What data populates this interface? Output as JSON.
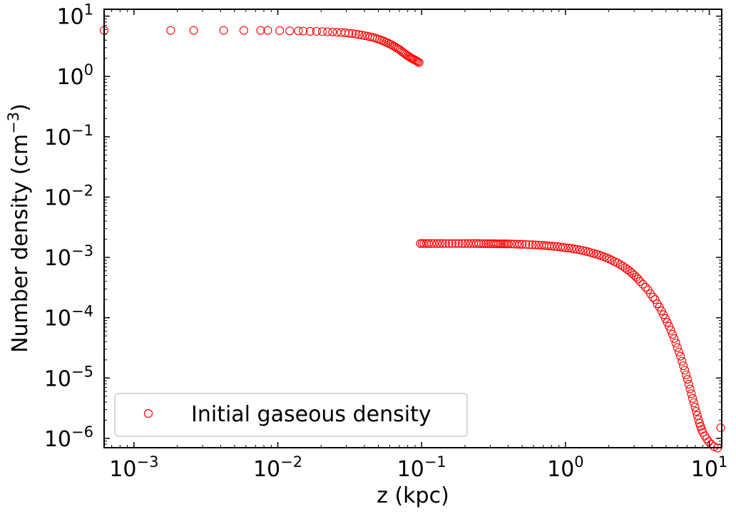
{
  "chart_data": {
    "type": "scatter",
    "title": "",
    "xlabel": "z (kpc)",
    "ylabel_base": "Number density (cm",
    "ylabel_exp": "−3",
    "ylabel_close": ")",
    "xscale": "log",
    "yscale": "log",
    "xlim": [
      0.00062,
      12.2
    ],
    "ylim": [
      7e-07,
      13
    ],
    "grid": false,
    "legend_placement": "lower-left",
    "x_ticks": [
      {
        "value": 0.001,
        "base": "10",
        "exp": "−3"
      },
      {
        "value": 0.01,
        "base": "10",
        "exp": "−2"
      },
      {
        "value": 0.1,
        "base": "10",
        "exp": "−1"
      },
      {
        "value": 1,
        "base": "10",
        "exp": "0"
      },
      {
        "value": 10,
        "base": "10",
        "exp": "1"
      }
    ],
    "y_ticks": [
      {
        "value": 1e-06,
        "base": "10",
        "exp": "−6"
      },
      {
        "value": 1e-05,
        "base": "10",
        "exp": "−5"
      },
      {
        "value": 0.0001,
        "base": "10",
        "exp": "−4"
      },
      {
        "value": 0.001,
        "base": "10",
        "exp": "−3"
      },
      {
        "value": 0.01,
        "base": "10",
        "exp": "−2"
      },
      {
        "value": 0.1,
        "base": "10",
        "exp": "−1"
      },
      {
        "value": 1,
        "base": "10",
        "exp": "0"
      },
      {
        "value": 10,
        "base": "10",
        "exp": "1"
      }
    ],
    "series": [
      {
        "name": "Initial gaseous density",
        "color": "#ff0000",
        "marker": "open-circle",
        "points": [
          [
            0.00062,
            5.8
          ],
          [
            0.0018,
            5.8
          ],
          [
            0.0026,
            5.8
          ],
          [
            0.0042,
            5.8
          ],
          [
            0.0058,
            5.8
          ],
          [
            0.0076,
            5.8
          ],
          [
            0.0085,
            5.8
          ],
          [
            0.0103,
            5.75
          ],
          [
            0.0121,
            5.7
          ],
          [
            0.0139,
            5.7
          ],
          [
            0.015,
            5.65
          ],
          [
            0.0168,
            5.6
          ],
          [
            0.0186,
            5.6
          ],
          [
            0.0204,
            5.55
          ],
          [
            0.0222,
            5.5
          ],
          [
            0.024,
            5.45
          ],
          [
            0.0258,
            5.4
          ],
          [
            0.0276,
            5.35
          ],
          [
            0.0294,
            5.3
          ],
          [
            0.0312,
            5.2
          ],
          [
            0.033,
            5.15
          ],
          [
            0.0348,
            5.05
          ],
          [
            0.0366,
            4.95
          ],
          [
            0.0384,
            4.85
          ],
          [
            0.0402,
            4.75
          ],
          [
            0.042,
            4.65
          ],
          [
            0.0438,
            4.55
          ],
          [
            0.0456,
            4.45
          ],
          [
            0.0474,
            4.35
          ],
          [
            0.0492,
            4.2
          ],
          [
            0.051,
            4.1
          ],
          [
            0.0528,
            3.95
          ],
          [
            0.0546,
            3.85
          ],
          [
            0.0564,
            3.7
          ],
          [
            0.0582,
            3.6
          ],
          [
            0.06,
            3.45
          ],
          [
            0.0618,
            3.35
          ],
          [
            0.0636,
            3.2
          ],
          [
            0.0654,
            3.1
          ],
          [
            0.0672,
            2.95
          ],
          [
            0.069,
            2.85
          ],
          [
            0.0708,
            2.75
          ],
          [
            0.0726,
            2.6
          ],
          [
            0.0744,
            2.5
          ],
          [
            0.0762,
            2.4
          ],
          [
            0.078,
            2.3
          ],
          [
            0.0798,
            2.2
          ],
          [
            0.0816,
            2.15
          ],
          [
            0.0834,
            2.05
          ],
          [
            0.0852,
            2.0
          ],
          [
            0.087,
            1.95
          ],
          [
            0.0888,
            1.9
          ],
          [
            0.0906,
            1.85
          ],
          [
            0.0924,
            1.8
          ],
          [
            0.0942,
            1.75
          ],
          [
            0.096,
            1.7
          ],
          [
            0.098,
            0.0017
          ],
          [
            0.101,
            0.0017
          ],
          [
            0.104,
            0.0017
          ],
          [
            0.108,
            0.0017
          ],
          [
            0.112,
            0.0017
          ],
          [
            0.117,
            0.0017
          ],
          [
            0.122,
            0.0017
          ],
          [
            0.128,
            0.0017
          ],
          [
            0.134,
            0.0017
          ],
          [
            0.14,
            0.0017
          ],
          [
            0.147,
            0.0017
          ],
          [
            0.155,
            0.0017
          ],
          [
            0.163,
            0.0017
          ],
          [
            0.172,
            0.0017
          ],
          [
            0.181,
            0.0017
          ],
          [
            0.191,
            0.0017
          ],
          [
            0.2,
            0.0017
          ],
          [
            0.21,
            0.0017
          ],
          [
            0.22,
            0.0017
          ],
          [
            0.23,
            0.0017
          ],
          [
            0.24,
            0.0017
          ],
          [
            0.25,
            0.0017
          ],
          [
            0.26,
            0.00169
          ],
          [
            0.27,
            0.00169
          ],
          [
            0.28,
            0.00169
          ],
          [
            0.29,
            0.00169
          ],
          [
            0.3,
            0.00169
          ],
          [
            0.31,
            0.00169
          ],
          [
            0.32,
            0.00169
          ],
          [
            0.33,
            0.00168
          ],
          [
            0.34,
            0.00168
          ],
          [
            0.35,
            0.00168
          ],
          [
            0.36,
            0.00168
          ],
          [
            0.37,
            0.00168
          ],
          [
            0.38,
            0.00168
          ],
          [
            0.39,
            0.00167
          ],
          [
            0.4,
            0.00167
          ],
          [
            0.42,
            0.00167
          ],
          [
            0.44,
            0.00166
          ],
          [
            0.46,
            0.00166
          ],
          [
            0.48,
            0.00165
          ],
          [
            0.5,
            0.00165
          ],
          [
            0.53,
            0.00164
          ],
          [
            0.56,
            0.00163
          ],
          [
            0.59,
            0.00162
          ],
          [
            0.62,
            0.00161
          ],
          [
            0.65,
            0.0016
          ],
          [
            0.68,
            0.00159
          ],
          [
            0.71,
            0.00158
          ],
          [
            0.74,
            0.00157
          ],
          [
            0.77,
            0.00155
          ],
          [
            0.8,
            0.00154
          ],
          [
            0.84,
            0.00152
          ],
          [
            0.88,
            0.00151
          ],
          [
            0.92,
            0.00149
          ],
          [
            0.96,
            0.00147
          ],
          [
            1.0,
            0.00145
          ],
          [
            1.05,
            0.00143
          ],
          [
            1.1,
            0.00141
          ],
          [
            1.15,
            0.00138
          ],
          [
            1.2,
            0.00136
          ],
          [
            1.26,
            0.00133
          ],
          [
            1.32,
            0.0013
          ],
          [
            1.38,
            0.00127
          ],
          [
            1.44,
            0.00124
          ],
          [
            1.5,
            0.0012
          ],
          [
            1.57,
            0.00117
          ],
          [
            1.64,
            0.00113
          ],
          [
            1.71,
            0.0011
          ],
          [
            1.78,
            0.00106
          ],
          [
            1.86,
            0.00102
          ],
          [
            1.94,
            0.00098
          ],
          [
            2.02,
            0.00094
          ],
          [
            2.1,
            0.0009
          ],
          [
            2.2,
            0.00085
          ],
          [
            2.3,
            0.00081
          ],
          [
            2.4,
            0.00076
          ],
          [
            2.5,
            0.00072
          ],
          [
            2.6,
            0.00067
          ],
          [
            2.7,
            0.00063
          ],
          [
            2.8,
            0.00059
          ],
          [
            2.9,
            0.00055
          ],
          [
            3.0,
            0.00051
          ],
          [
            3.1,
            0.00047
          ],
          [
            3.2,
            0.00044
          ],
          [
            3.3,
            0.0004
          ],
          [
            3.45,
            0.00036
          ],
          [
            3.6,
            0.00032
          ],
          [
            3.75,
            0.00029
          ],
          [
            3.9,
            0.00025
          ],
          [
            4.05,
            0.00022
          ],
          [
            4.2,
            0.0002
          ],
          [
            4.35,
            0.00017
          ],
          [
            4.5,
            0.00015
          ],
          [
            4.65,
            0.00013
          ],
          [
            4.8,
            0.000112
          ],
          [
            4.95,
            9.7e-05
          ],
          [
            5.1,
            8.4e-05
          ],
          [
            5.25,
            7.2e-05
          ],
          [
            5.4,
            6.2e-05
          ],
          [
            5.55,
            5.3e-05
          ],
          [
            5.7,
            4.5e-05
          ],
          [
            5.85,
            3.8e-05
          ],
          [
            6.0,
            3.2e-05
          ],
          [
            6.15,
            2.7e-05
          ],
          [
            6.3,
            2.3e-05
          ],
          [
            6.45,
            1.9e-05
          ],
          [
            6.6,
            1.6e-05
          ],
          [
            6.75,
            1.35e-05
          ],
          [
            6.9,
            1.13e-05
          ],
          [
            7.05,
            9.5e-06
          ],
          [
            7.2,
            7.9e-06
          ],
          [
            7.35,
            6.6e-06
          ],
          [
            7.5,
            5.5e-06
          ],
          [
            7.65,
            4.6e-06
          ],
          [
            7.8,
            3.9e-06
          ],
          [
            7.95,
            3.3e-06
          ],
          [
            8.1,
            2.8e-06
          ],
          [
            8.25,
            2.4e-06
          ],
          [
            8.4,
            2.05e-06
          ],
          [
            8.55,
            1.78e-06
          ],
          [
            8.7,
            1.58e-06
          ],
          [
            8.85,
            1.4e-06
          ],
          [
            9.0,
            1.26e-06
          ],
          [
            9.3,
            1.1e-06
          ],
          [
            9.6,
            9.8e-07
          ],
          [
            9.9,
            8.8e-07
          ],
          [
            10.3,
            8e-07
          ],
          [
            10.8,
            7.3e-07
          ],
          [
            11.4,
            6.9e-07
          ],
          [
            12.0,
            1.5e-06
          ]
        ]
      }
    ]
  }
}
